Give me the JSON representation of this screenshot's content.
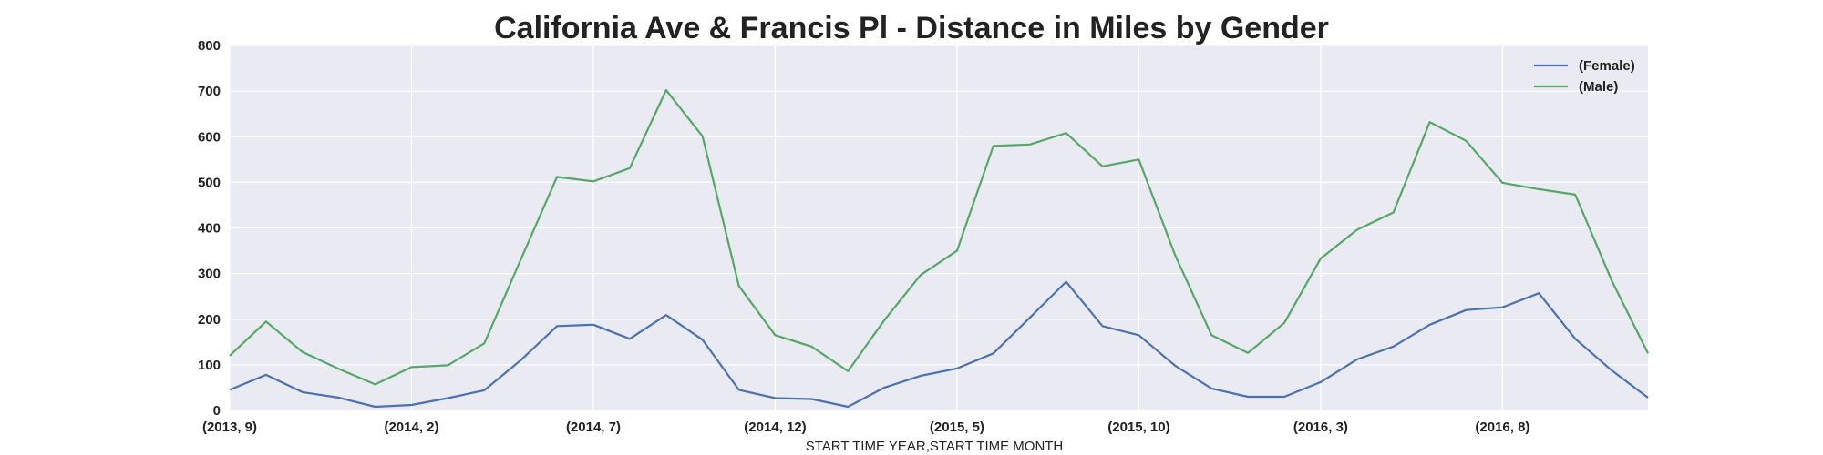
{
  "chart_data": {
    "type": "line",
    "title": "California Ave & Francis Pl - Distance in Miles by Gender",
    "xlabel": "START TIME YEAR,START TIME MONTH",
    "ylabel": "",
    "ylim": [
      0,
      800
    ],
    "yticks": [
      0,
      100,
      200,
      300,
      400,
      500,
      600,
      700,
      800
    ],
    "x": [
      "(2013, 9)",
      "(2013, 10)",
      "(2013, 11)",
      "(2013, 12)",
      "(2014, 1)",
      "(2014, 2)",
      "(2014, 3)",
      "(2014, 4)",
      "(2014, 5)",
      "(2014, 6)",
      "(2014, 7)",
      "(2014, 8)",
      "(2014, 9)",
      "(2014, 10)",
      "(2014, 11)",
      "(2014, 12)",
      "(2015, 1)",
      "(2015, 2)",
      "(2015, 3)",
      "(2015, 4)",
      "(2015, 5)",
      "(2015, 6)",
      "(2015, 7)",
      "(2015, 8)",
      "(2015, 9)",
      "(2015, 10)",
      "(2015, 11)",
      "(2015, 12)",
      "(2016, 1)",
      "(2016, 2)",
      "(2016, 3)",
      "(2016, 4)",
      "(2016, 5)",
      "(2016, 6)",
      "(2016, 7)",
      "(2016, 8)",
      "(2016, 9)",
      "(2016, 10)",
      "(2016, 11)",
      "(2016, 12)"
    ],
    "xtick_labels": [
      "(2013, 9)",
      "(2014, 2)",
      "(2014, 7)",
      "(2014, 12)",
      "(2015, 5)",
      "(2015, 10)",
      "(2016, 3)",
      "(2016, 8)"
    ],
    "series": [
      {
        "name": "(Female)",
        "color": "#4c72b0",
        "values": [
          45,
          78,
          40,
          28,
          8,
          12,
          27,
          44,
          110,
          185,
          188,
          157,
          209,
          155,
          45,
          27,
          25,
          8,
          50,
          76,
          92,
          125,
          203,
          282,
          185,
          165,
          98,
          48,
          30,
          30,
          62,
          112,
          140,
          188,
          220,
          226,
          257,
          157,
          88,
          28
        ]
      },
      {
        "name": "(Male)",
        "color": "#55a868",
        "values": [
          120,
          195,
          128,
          91,
          57,
          95,
          99,
          147,
          330,
          512,
          502,
          531,
          702,
          601,
          273,
          165,
          140,
          86,
          198,
          297,
          350,
          580,
          583,
          608,
          535,
          550,
          340,
          165,
          126,
          192,
          333,
          396,
          434,
          632,
          591,
          499,
          485,
          473,
          285,
          125
        ]
      }
    ],
    "grid": true,
    "legend_position": "top-right",
    "background_color": "#eaeaf2",
    "grid_color": "#ffffff"
  }
}
